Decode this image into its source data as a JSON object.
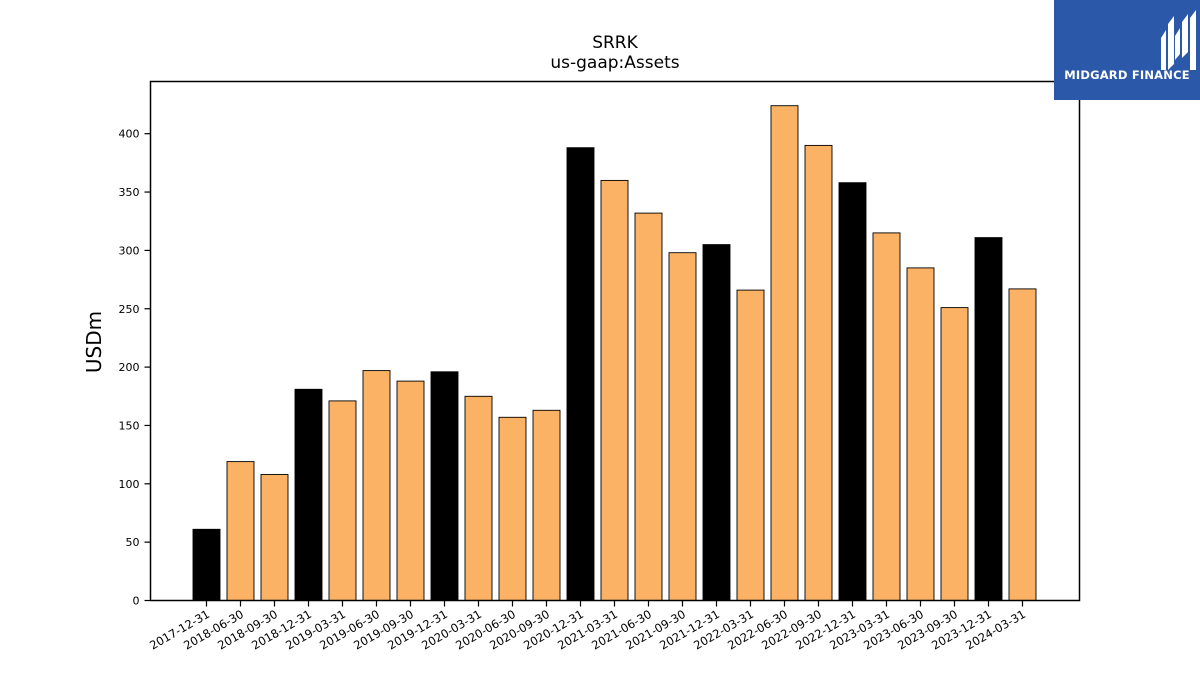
{
  "brand": {
    "name": "MIDGARD FINANCE",
    "background_color": "#2b58a8",
    "icon": "midgard-logo-icon"
  },
  "chart_data": {
    "type": "bar",
    "title": "SRRK",
    "subtitle": "us-gaap:Assets",
    "xlabel": "",
    "ylabel": "USDm",
    "ylim": [
      0,
      443
    ],
    "yticks": [
      0,
      50,
      100,
      150,
      200,
      250,
      300,
      350,
      400
    ],
    "grid": false,
    "legend": "none",
    "colors": {
      "year_end": "#000000",
      "quarter": "#fbb264",
      "edge": "#000000"
    },
    "categories": [
      "2017-12-31",
      "2018-06-30",
      "2018-09-30",
      "2018-12-31",
      "2019-03-31",
      "2019-06-30",
      "2019-09-30",
      "2019-12-31",
      "2020-03-31",
      "2020-06-30",
      "2020-09-30",
      "2020-12-31",
      "2021-03-31",
      "2021-06-30",
      "2021-09-30",
      "2021-12-31",
      "2022-03-31",
      "2022-06-30",
      "2022-09-30",
      "2022-12-31",
      "2023-03-31",
      "2023-06-30",
      "2023-09-30",
      "2023-12-31",
      "2024-03-31"
    ],
    "values": [
      61,
      119,
      108,
      181,
      171,
      197,
      188,
      196,
      175,
      157,
      163,
      388,
      360,
      332,
      298,
      305,
      266,
      424,
      390,
      358,
      315,
      285,
      251,
      311,
      267
    ],
    "year_end": [
      true,
      false,
      false,
      true,
      false,
      false,
      false,
      true,
      false,
      false,
      false,
      true,
      false,
      false,
      false,
      true,
      false,
      false,
      false,
      true,
      false,
      false,
      false,
      true,
      false
    ]
  }
}
